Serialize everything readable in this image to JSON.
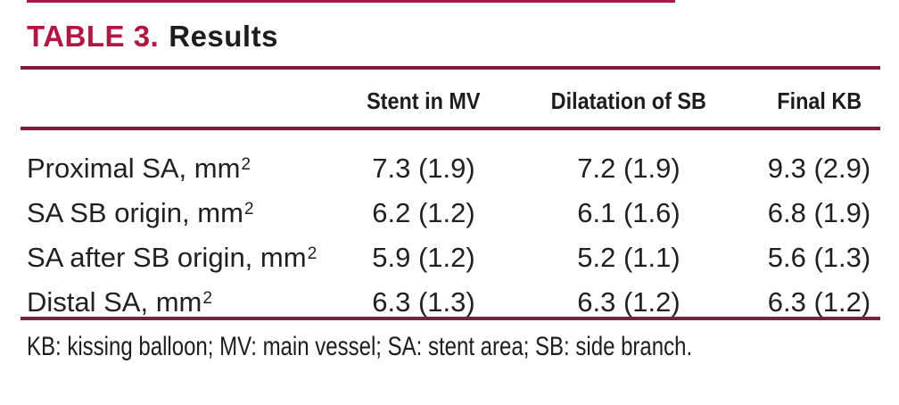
{
  "title": {
    "table_label": "TABLE 3.",
    "text": "Results"
  },
  "colors": {
    "accent_red": "#b11741",
    "rule_maroon": "#7f1d40",
    "text": "#1d1d1b"
  },
  "table": {
    "columns": [
      "Stent in MV",
      "Dilatation of SB",
      "Final KB"
    ],
    "rows": [
      {
        "label": "Proximal SA, mm²",
        "values": [
          "7.3 (1.9)",
          "7.2 (1.9)",
          "9.3 (2.9)"
        ]
      },
      {
        "label": "SA SB origin, mm²",
        "values": [
          "6.2 (1.2)",
          "6.1 (1.6)",
          "6.8 (1.9)"
        ]
      },
      {
        "label": "SA after SB origin, mm²",
        "values": [
          "5.9 (1.2)",
          "5.2 (1.1)",
          "5.6 (1.3)"
        ]
      },
      {
        "label": "Distal SA, mm²",
        "values": [
          "6.3 (1.3)",
          "6.3 (1.2)",
          "6.3 (1.2)"
        ]
      }
    ]
  },
  "footnote": "KB: kissing balloon; MV: main vessel; SA: stent area; SB: side branch."
}
